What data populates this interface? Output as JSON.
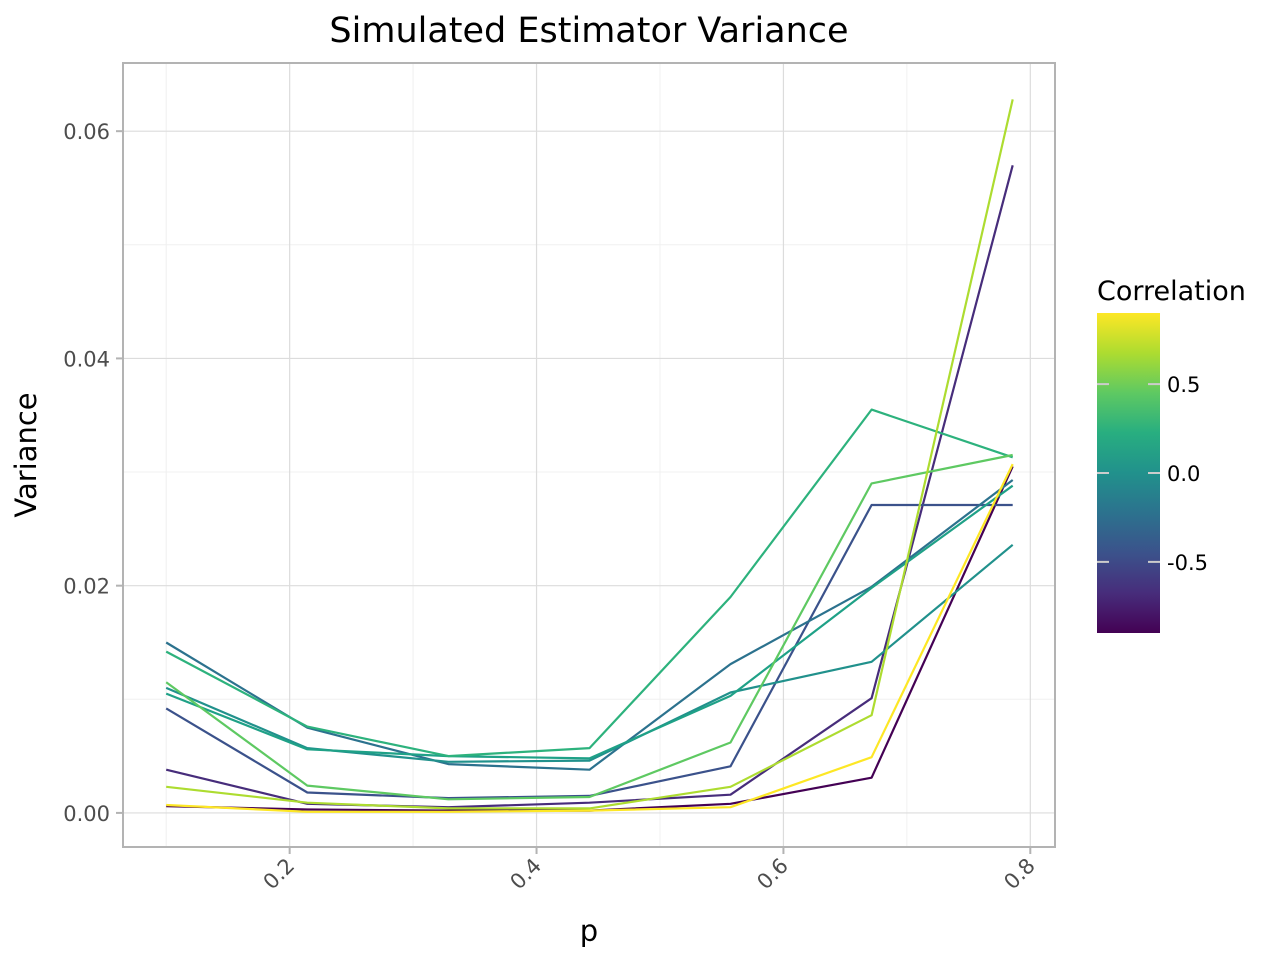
{
  "chart_data": {
    "type": "line",
    "title": "Simulated Estimator Variance",
    "xlabel": "p",
    "ylabel": "Variance",
    "xlim": [
      0.065,
      0.82
    ],
    "ylim": [
      -0.003,
      0.066
    ],
    "x_ticks": [
      0.2,
      0.4,
      0.6,
      0.8
    ],
    "x_tick_labels": [
      "0.2",
      "0.4",
      "0.6",
      "0.8"
    ],
    "y_ticks": [
      0.0,
      0.02,
      0.04,
      0.06
    ],
    "y_tick_labels": [
      "0.00",
      "0.02",
      "0.04",
      "0.06"
    ],
    "grid": true,
    "legend": {
      "title": "Correlation",
      "placement": "right",
      "type": "colorbar",
      "colormap": "viridis",
      "range": [
        -0.9,
        0.9
      ],
      "ticks": [
        0.5,
        0.0,
        -0.5
      ],
      "tick_labels": [
        "0.5",
        "0.0",
        "-0.5"
      ]
    },
    "x": [
      0.1,
      0.2143,
      0.3286,
      0.4429,
      0.5571,
      0.6714,
      0.7857
    ],
    "series": [
      {
        "correlation": -0.9,
        "color": "#440154",
        "values": [
          0.0006,
          0.0003,
          0.0002,
          0.0002,
          0.0008,
          0.0031,
          0.0305
        ]
      },
      {
        "correlation": -0.7,
        "color": "#472d7b",
        "values": [
          0.0038,
          0.0008,
          0.0005,
          0.0009,
          0.0016,
          0.0101,
          0.057
        ]
      },
      {
        "correlation": -0.5,
        "color": "#3b528b",
        "values": [
          0.0092,
          0.0018,
          0.0013,
          0.0015,
          0.0041,
          0.0271,
          0.0271
        ]
      },
      {
        "correlation": -0.3,
        "color": "#2c728e",
        "values": [
          0.015,
          0.0075,
          0.0043,
          0.0038,
          0.0131,
          0.0199,
          0.0293
        ]
      },
      {
        "correlation": -0.1,
        "color": "#21918c",
        "values": [
          0.011,
          0.0057,
          0.0045,
          0.0046,
          0.0106,
          0.0133,
          0.0236
        ]
      },
      {
        "correlation": 0.1,
        "color": "#1fa187",
        "values": [
          0.0105,
          0.0056,
          0.005,
          0.0048,
          0.0103,
          0.0198,
          0.0288
        ]
      },
      {
        "correlation": 0.3,
        "color": "#2db27d",
        "values": [
          0.0142,
          0.0076,
          0.005,
          0.0057,
          0.019,
          0.0355,
          0.0313
        ]
      },
      {
        "correlation": 0.5,
        "color": "#5ec962",
        "values": [
          0.0115,
          0.0024,
          0.0012,
          0.0014,
          0.0062,
          0.029,
          0.0315
        ]
      },
      {
        "correlation": 0.7,
        "color": "#addc30",
        "values": [
          0.0023,
          0.0009,
          0.0004,
          0.0004,
          0.0023,
          0.0086,
          0.0628
        ]
      },
      {
        "correlation": 0.9,
        "color": "#fde725",
        "values": [
          0.0007,
          0.0001,
          0.0001,
          0.0002,
          0.0005,
          0.0049,
          0.0307
        ]
      }
    ]
  }
}
